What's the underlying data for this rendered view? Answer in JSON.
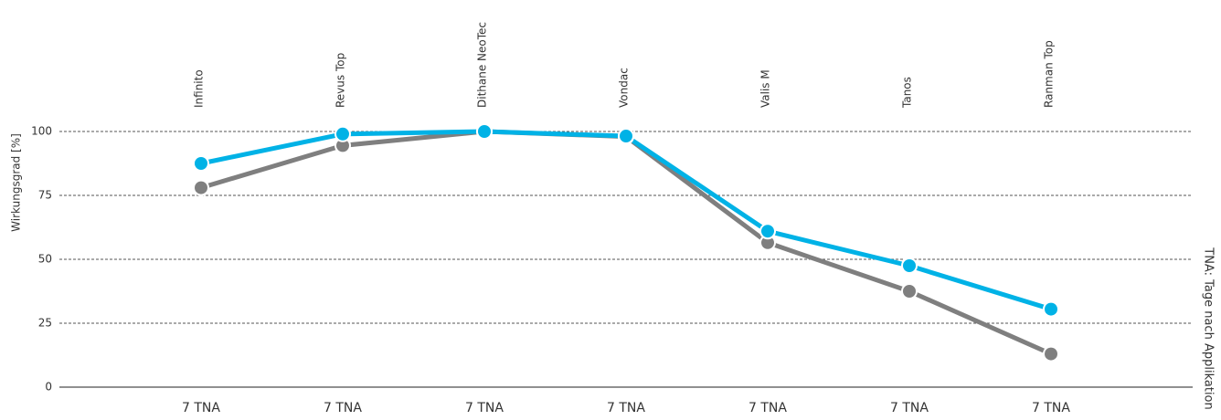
{
  "chart_data": {
    "type": "line",
    "y_label": "Wirkungsgrad [%]",
    "right_label": "TNA: Tage nach Applikation",
    "products": [
      "Infinito",
      "Revus Top",
      "Dithane NeoTec",
      "Vondac",
      "Valis M",
      "Tanos",
      "Ranman Top"
    ],
    "categories": [
      "7 TNA",
      "7 TNA",
      "7 TNA",
      "7 TNA",
      "7 TNA",
      "7 TNA",
      "7 TNA"
    ],
    "series": [
      {
        "color": "#7f7f7f",
        "values": [
          78,
          94.5,
          100,
          98,
          56.5,
          37.5,
          13
        ]
      },
      {
        "color": "#00b2e6",
        "values": [
          87.5,
          99,
          100,
          98.2,
          61,
          47.5,
          30.5
        ]
      }
    ],
    "ylim": [
      0,
      100
    ],
    "yticks": [
      0,
      25,
      50,
      75,
      100
    ],
    "grid": true
  }
}
